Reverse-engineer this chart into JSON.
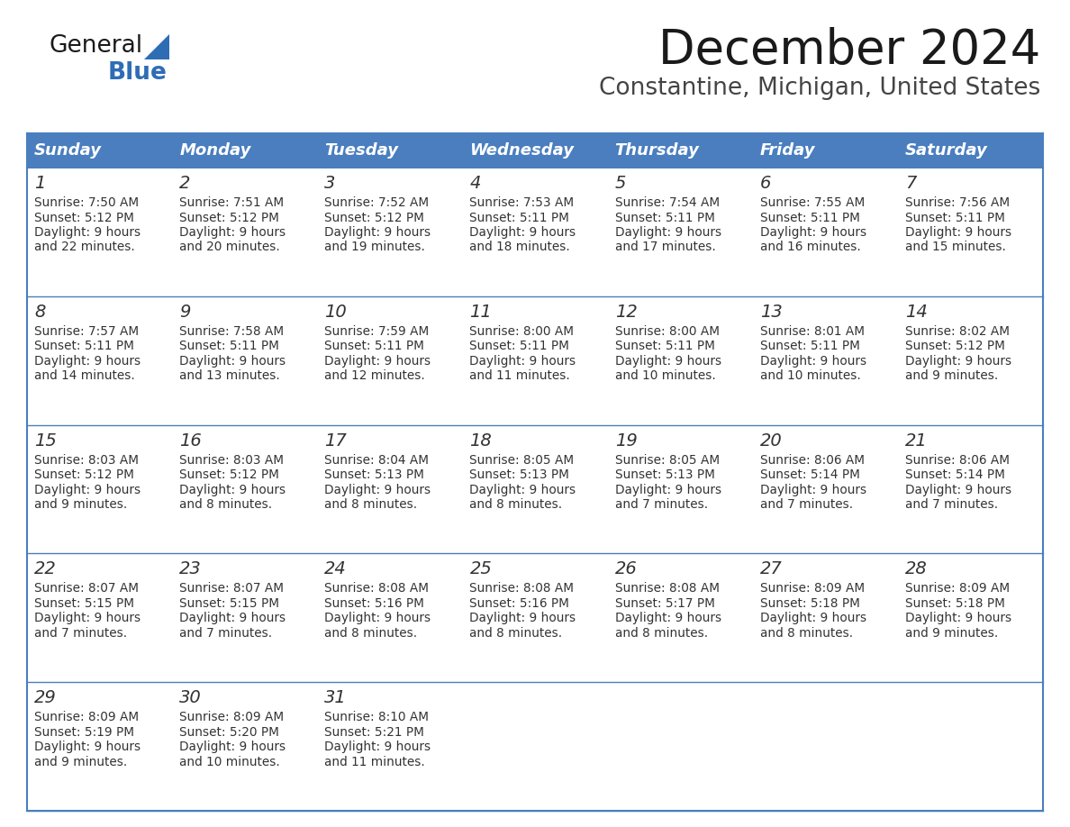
{
  "title": "December 2024",
  "subtitle": "Constantine, Michigan, United States",
  "header_bg_color": "#4a7ebf",
  "header_text_color": "#ffffff",
  "cell_bg_color": "#ffffff",
  "border_color": "#4a7ebf",
  "title_color": "#1a1a1a",
  "subtitle_color": "#444444",
  "text_color": "#333333",
  "day_names": [
    "Sunday",
    "Monday",
    "Tuesday",
    "Wednesday",
    "Thursday",
    "Friday",
    "Saturday"
  ],
  "weeks": [
    [
      {
        "day": "1",
        "sunrise": "7:50 AM",
        "sunset": "5:12 PM",
        "daylight": "9 hours",
        "daylight2": "and 22 minutes."
      },
      {
        "day": "2",
        "sunrise": "7:51 AM",
        "sunset": "5:12 PM",
        "daylight": "9 hours",
        "daylight2": "and 20 minutes."
      },
      {
        "day": "3",
        "sunrise": "7:52 AM",
        "sunset": "5:12 PM",
        "daylight": "9 hours",
        "daylight2": "and 19 minutes."
      },
      {
        "day": "4",
        "sunrise": "7:53 AM",
        "sunset": "5:11 PM",
        "daylight": "9 hours",
        "daylight2": "and 18 minutes."
      },
      {
        "day": "5",
        "sunrise": "7:54 AM",
        "sunset": "5:11 PM",
        "daylight": "9 hours",
        "daylight2": "and 17 minutes."
      },
      {
        "day": "6",
        "sunrise": "7:55 AM",
        "sunset": "5:11 PM",
        "daylight": "9 hours",
        "daylight2": "and 16 minutes."
      },
      {
        "day": "7",
        "sunrise": "7:56 AM",
        "sunset": "5:11 PM",
        "daylight": "9 hours",
        "daylight2": "and 15 minutes."
      }
    ],
    [
      {
        "day": "8",
        "sunrise": "7:57 AM",
        "sunset": "5:11 PM",
        "daylight": "9 hours",
        "daylight2": "and 14 minutes."
      },
      {
        "day": "9",
        "sunrise": "7:58 AM",
        "sunset": "5:11 PM",
        "daylight": "9 hours",
        "daylight2": "and 13 minutes."
      },
      {
        "day": "10",
        "sunrise": "7:59 AM",
        "sunset": "5:11 PM",
        "daylight": "9 hours",
        "daylight2": "and 12 minutes."
      },
      {
        "day": "11",
        "sunrise": "8:00 AM",
        "sunset": "5:11 PM",
        "daylight": "9 hours",
        "daylight2": "and 11 minutes."
      },
      {
        "day": "12",
        "sunrise": "8:00 AM",
        "sunset": "5:11 PM",
        "daylight": "9 hours",
        "daylight2": "and 10 minutes."
      },
      {
        "day": "13",
        "sunrise": "8:01 AM",
        "sunset": "5:11 PM",
        "daylight": "9 hours",
        "daylight2": "and 10 minutes."
      },
      {
        "day": "14",
        "sunrise": "8:02 AM",
        "sunset": "5:12 PM",
        "daylight": "9 hours",
        "daylight2": "and 9 minutes."
      }
    ],
    [
      {
        "day": "15",
        "sunrise": "8:03 AM",
        "sunset": "5:12 PM",
        "daylight": "9 hours",
        "daylight2": "and 9 minutes."
      },
      {
        "day": "16",
        "sunrise": "8:03 AM",
        "sunset": "5:12 PM",
        "daylight": "9 hours",
        "daylight2": "and 8 minutes."
      },
      {
        "day": "17",
        "sunrise": "8:04 AM",
        "sunset": "5:13 PM",
        "daylight": "9 hours",
        "daylight2": "and 8 minutes."
      },
      {
        "day": "18",
        "sunrise": "8:05 AM",
        "sunset": "5:13 PM",
        "daylight": "9 hours",
        "daylight2": "and 8 minutes."
      },
      {
        "day": "19",
        "sunrise": "8:05 AM",
        "sunset": "5:13 PM",
        "daylight": "9 hours",
        "daylight2": "and 7 minutes."
      },
      {
        "day": "20",
        "sunrise": "8:06 AM",
        "sunset": "5:14 PM",
        "daylight": "9 hours",
        "daylight2": "and 7 minutes."
      },
      {
        "day": "21",
        "sunrise": "8:06 AM",
        "sunset": "5:14 PM",
        "daylight": "9 hours",
        "daylight2": "and 7 minutes."
      }
    ],
    [
      {
        "day": "22",
        "sunrise": "8:07 AM",
        "sunset": "5:15 PM",
        "daylight": "9 hours",
        "daylight2": "and 7 minutes."
      },
      {
        "day": "23",
        "sunrise": "8:07 AM",
        "sunset": "5:15 PM",
        "daylight": "9 hours",
        "daylight2": "and 7 minutes."
      },
      {
        "day": "24",
        "sunrise": "8:08 AM",
        "sunset": "5:16 PM",
        "daylight": "9 hours",
        "daylight2": "and 8 minutes."
      },
      {
        "day": "25",
        "sunrise": "8:08 AM",
        "sunset": "5:16 PM",
        "daylight": "9 hours",
        "daylight2": "and 8 minutes."
      },
      {
        "day": "26",
        "sunrise": "8:08 AM",
        "sunset": "5:17 PM",
        "daylight": "9 hours",
        "daylight2": "and 8 minutes."
      },
      {
        "day": "27",
        "sunrise": "8:09 AM",
        "sunset": "5:18 PM",
        "daylight": "9 hours",
        "daylight2": "and 8 minutes."
      },
      {
        "day": "28",
        "sunrise": "8:09 AM",
        "sunset": "5:18 PM",
        "daylight": "9 hours",
        "daylight2": "and 9 minutes."
      }
    ],
    [
      {
        "day": "29",
        "sunrise": "8:09 AM",
        "sunset": "5:19 PM",
        "daylight": "9 hours",
        "daylight2": "and 9 minutes."
      },
      {
        "day": "30",
        "sunrise": "8:09 AM",
        "sunset": "5:20 PM",
        "daylight": "9 hours",
        "daylight2": "and 10 minutes."
      },
      {
        "day": "31",
        "sunrise": "8:10 AM",
        "sunset": "5:21 PM",
        "daylight": "9 hours",
        "daylight2": "and 11 minutes."
      },
      null,
      null,
      null,
      null
    ]
  ],
  "logo_general_color": "#1a1a1a",
  "logo_blue_color": "#2e6db4",
  "logo_triangle_color": "#2e6db4",
  "fig_width": 11.88,
  "fig_height": 9.18,
  "dpi": 100
}
